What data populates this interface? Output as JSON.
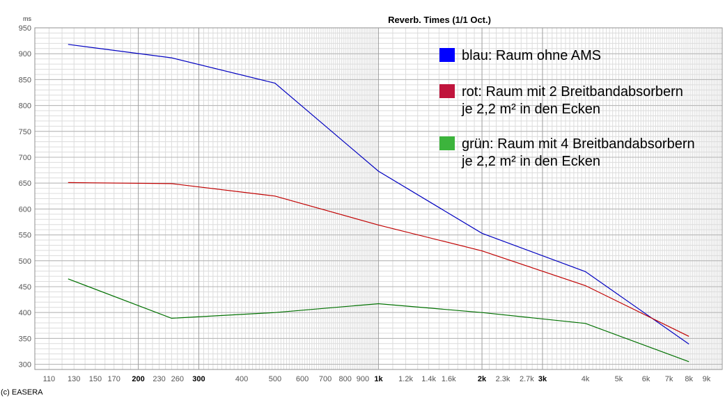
{
  "chart_data": {
    "type": "line",
    "title": "Reverb. Times (1/1 Oct.)",
    "ylabel": "ms",
    "xscale": "log",
    "xlim": [
      100,
      10000
    ],
    "ylim": [
      290,
      950
    ],
    "grid": true,
    "y_ticks": [
      300,
      350,
      400,
      450,
      500,
      550,
      600,
      650,
      700,
      750,
      800,
      850,
      900,
      950
    ],
    "x_ticks": [
      {
        "v": 110,
        "label": "110",
        "bold": false
      },
      {
        "v": 130,
        "label": "130",
        "bold": false
      },
      {
        "v": 150,
        "label": "150",
        "bold": false
      },
      {
        "v": 170,
        "label": "170",
        "bold": false
      },
      {
        "v": 200,
        "label": "200",
        "bold": true
      },
      {
        "v": 230,
        "label": "230",
        "bold": false
      },
      {
        "v": 260,
        "label": "260",
        "bold": false
      },
      {
        "v": 300,
        "label": "300",
        "bold": true
      },
      {
        "v": 400,
        "label": "400",
        "bold": false
      },
      {
        "v": 500,
        "label": "500",
        "bold": false
      },
      {
        "v": 600,
        "label": "600",
        "bold": false
      },
      {
        "v": 700,
        "label": "700",
        "bold": false
      },
      {
        "v": 800,
        "label": "800",
        "bold": false
      },
      {
        "v": 900,
        "label": "900",
        "bold": false
      },
      {
        "v": 1000,
        "label": "1k",
        "bold": true
      },
      {
        "v": 1200,
        "label": "1.2k",
        "bold": false
      },
      {
        "v": 1400,
        "label": "1.4k",
        "bold": false
      },
      {
        "v": 1600,
        "label": "1.6k",
        "bold": false
      },
      {
        "v": 2000,
        "label": "2k",
        "bold": true
      },
      {
        "v": 2300,
        "label": "2.3k",
        "bold": false
      },
      {
        "v": 2700,
        "label": "2.7k",
        "bold": false
      },
      {
        "v": 3000,
        "label": "3k",
        "bold": true
      },
      {
        "v": 4000,
        "label": "4k",
        "bold": false
      },
      {
        "v": 5000,
        "label": "5k",
        "bold": false
      },
      {
        "v": 6000,
        "label": "6k",
        "bold": false
      },
      {
        "v": 7000,
        "label": "7k",
        "bold": false
      },
      {
        "v": 8000,
        "label": "8k",
        "bold": false
      },
      {
        "v": 9000,
        "label": "9k",
        "bold": false
      }
    ],
    "legend_placement": "top-right",
    "series": [
      {
        "color": "#0000c0",
        "legend_color": "#0000ff",
        "x": [
          125,
          250,
          500,
          1000,
          2000,
          4000,
          8000
        ],
        "y": [
          918,
          892,
          843,
          673,
          553,
          479,
          339
        ]
      },
      {
        "color": "#c00000",
        "legend_color": "#c0143c",
        "x": [
          125,
          250,
          500,
          1000,
          2000,
          4000,
          8000
        ],
        "y": [
          651,
          649,
          625,
          569,
          519,
          452,
          354
        ]
      },
      {
        "color": "#007000",
        "legend_color": "#3cb43c",
        "x": [
          125,
          250,
          500,
          1000,
          2000,
          4000,
          8000
        ],
        "y": [
          465,
          389,
          400,
          417,
          400,
          379,
          305
        ]
      }
    ]
  },
  "legend": [
    {
      "lines": [
        "blau: Raum ohne AMS"
      ]
    },
    {
      "lines": [
        "rot: Raum mit 2 Breitbandabsorbern",
        "je 2,2 m² in den Ecken"
      ]
    },
    {
      "lines": [
        "grün: Raum mit 4 Breitbandabsorbern",
        "je 2,2 m² in den Ecken"
      ]
    }
  ],
  "footer": {
    "copyright": "(c) EASERA"
  }
}
